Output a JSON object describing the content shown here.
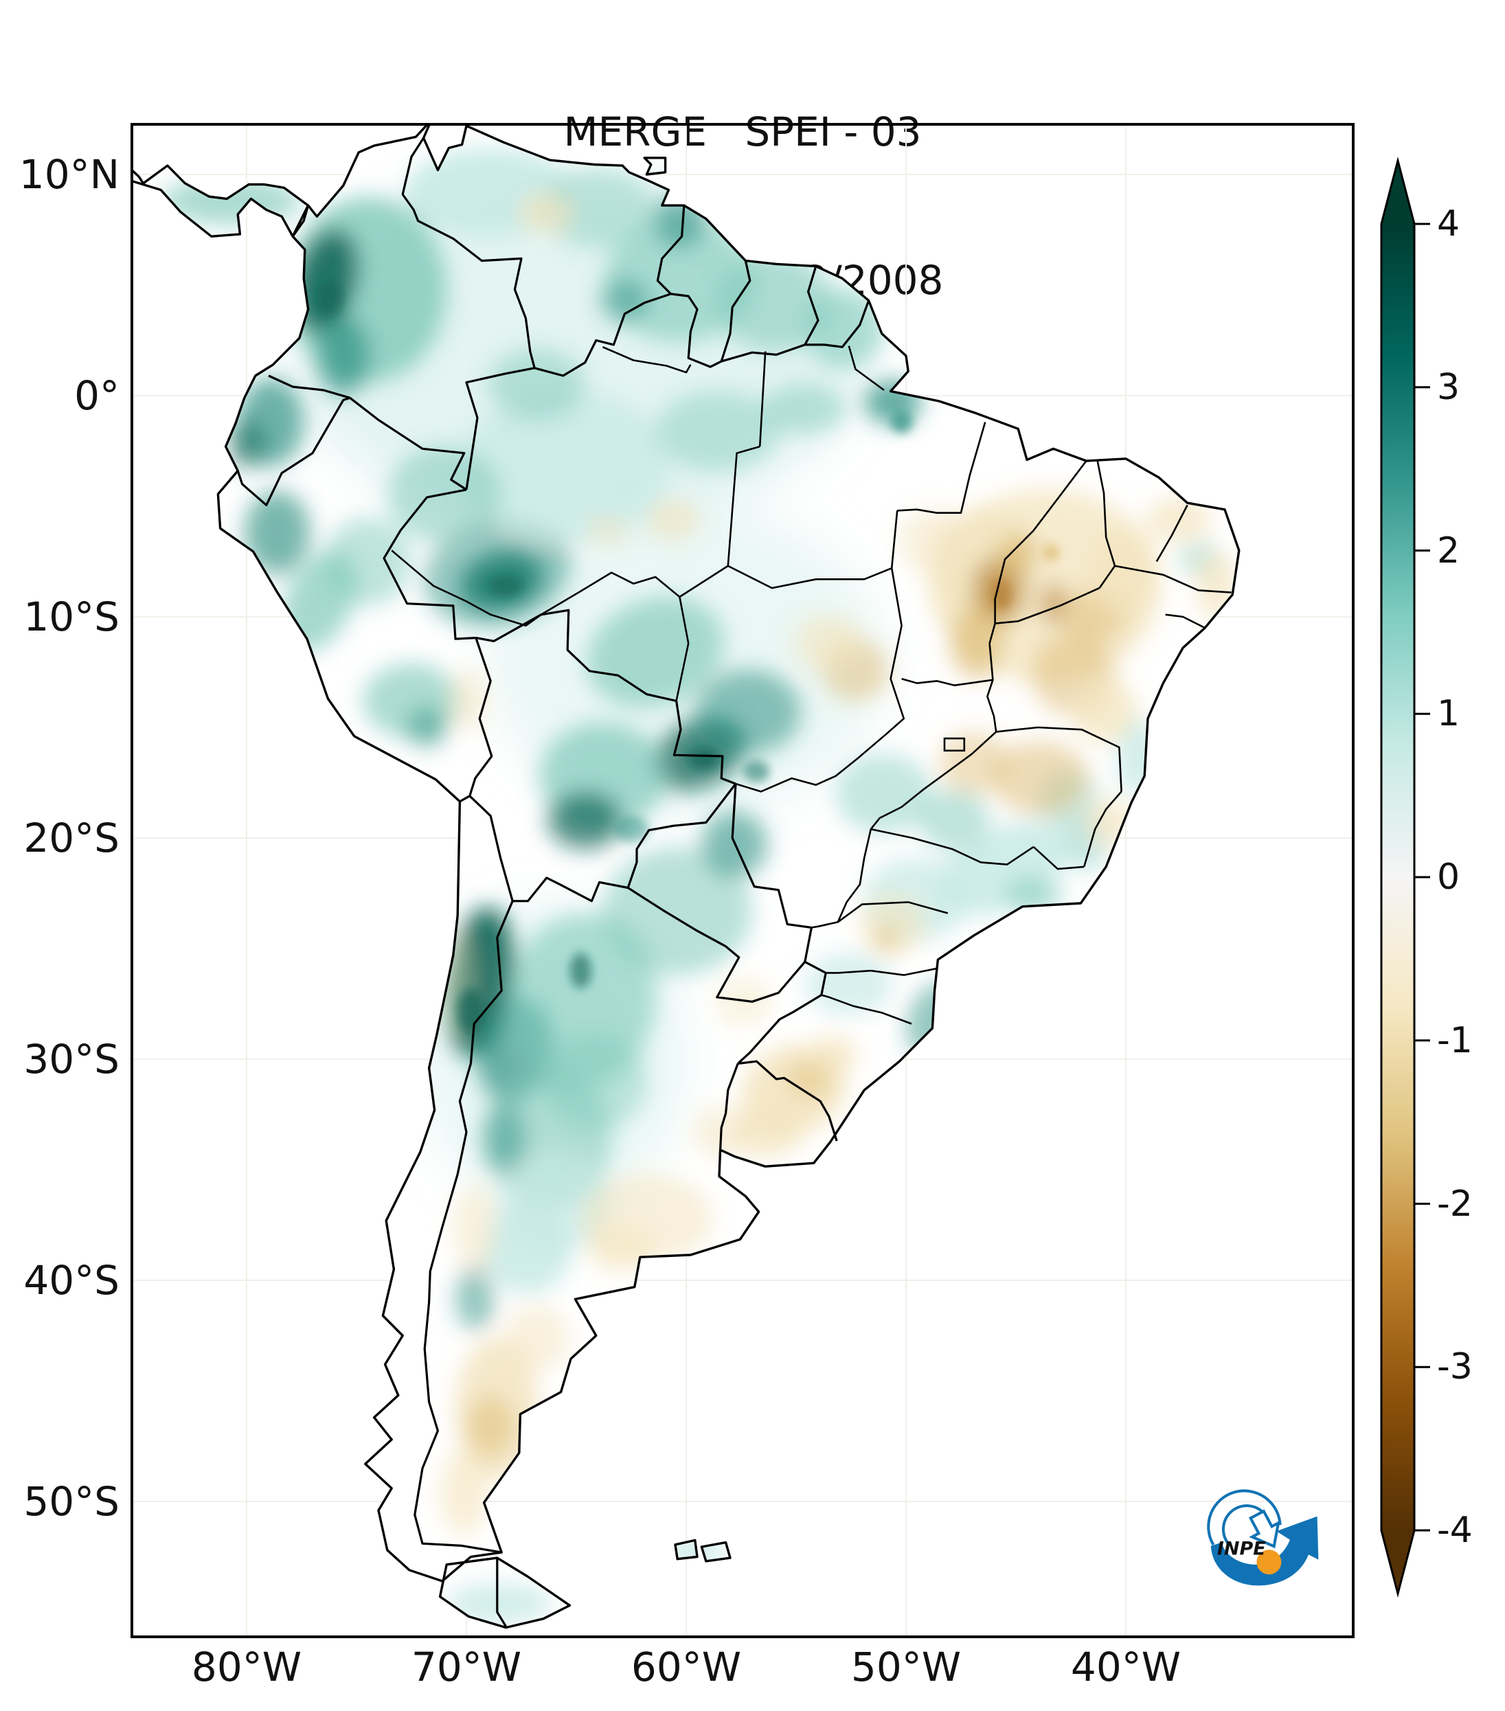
{
  "title": {
    "line1": "MERGE   SPEI - 03",
    "line2": "Válido para 02/2008"
  },
  "axes": {
    "y_ticks": [
      {
        "label": "10°N",
        "lat": 10
      },
      {
        "label": "0°",
        "lat": 0
      },
      {
        "label": "10°S",
        "lat": -10
      },
      {
        "label": "20°S",
        "lat": -20
      },
      {
        "label": "30°S",
        "lat": -30
      },
      {
        "label": "40°S",
        "lat": -40
      },
      {
        "label": "50°S",
        "lat": -50
      }
    ],
    "x_ticks": [
      {
        "label": "80°W",
        "lon": -80
      },
      {
        "label": "70°W",
        "lon": -70
      },
      {
        "label": "60°W",
        "lon": -60
      },
      {
        "label": "50°W",
        "lon": -50
      },
      {
        "label": "40°W",
        "lon": -40
      }
    ]
  },
  "colorbar": {
    "tick_labels": [
      "4",
      "3",
      "2",
      "1",
      "0",
      "-1",
      "-2",
      "-3",
      "-4"
    ],
    "tick_values": [
      4,
      3,
      2,
      1,
      0,
      -1,
      -2,
      -3,
      -4
    ],
    "value_range": [
      -4,
      4
    ],
    "extend": "both",
    "gradient_stops": [
      [
        "0%",
        "#003c30"
      ],
      [
        "10%",
        "#01665e"
      ],
      [
        "20%",
        "#35978f"
      ],
      [
        "30%",
        "#80cdc1"
      ],
      [
        "40%",
        "#c7eae5"
      ],
      [
        "50%",
        "#f5f5f5"
      ],
      [
        "60%",
        "#f6e8c3"
      ],
      [
        "70%",
        "#dfc27d"
      ],
      [
        "80%",
        "#bf812d"
      ],
      [
        "90%",
        "#8c510a"
      ],
      [
        "100%",
        "#543005"
      ]
    ],
    "extend_colors": {
      "top": "#003c30",
      "bottom": "#543005"
    }
  },
  "palette": {
    "t1": "#c7eae5",
    "t2": "#7fc9ba",
    "t3": "#2e9183",
    "t4": "#0c6557",
    "b1": "#f3e4bd",
    "b2": "#ddba72",
    "b3": "#b27b2c"
  },
  "map": {
    "background": "#ffffff",
    "border_color": "#000000",
    "grid_color": "#f1efe9"
  },
  "logo": {
    "label": "INPE",
    "blue": "#1173b5",
    "orange": "#f19b1f",
    "text_color": "#121212"
  }
}
